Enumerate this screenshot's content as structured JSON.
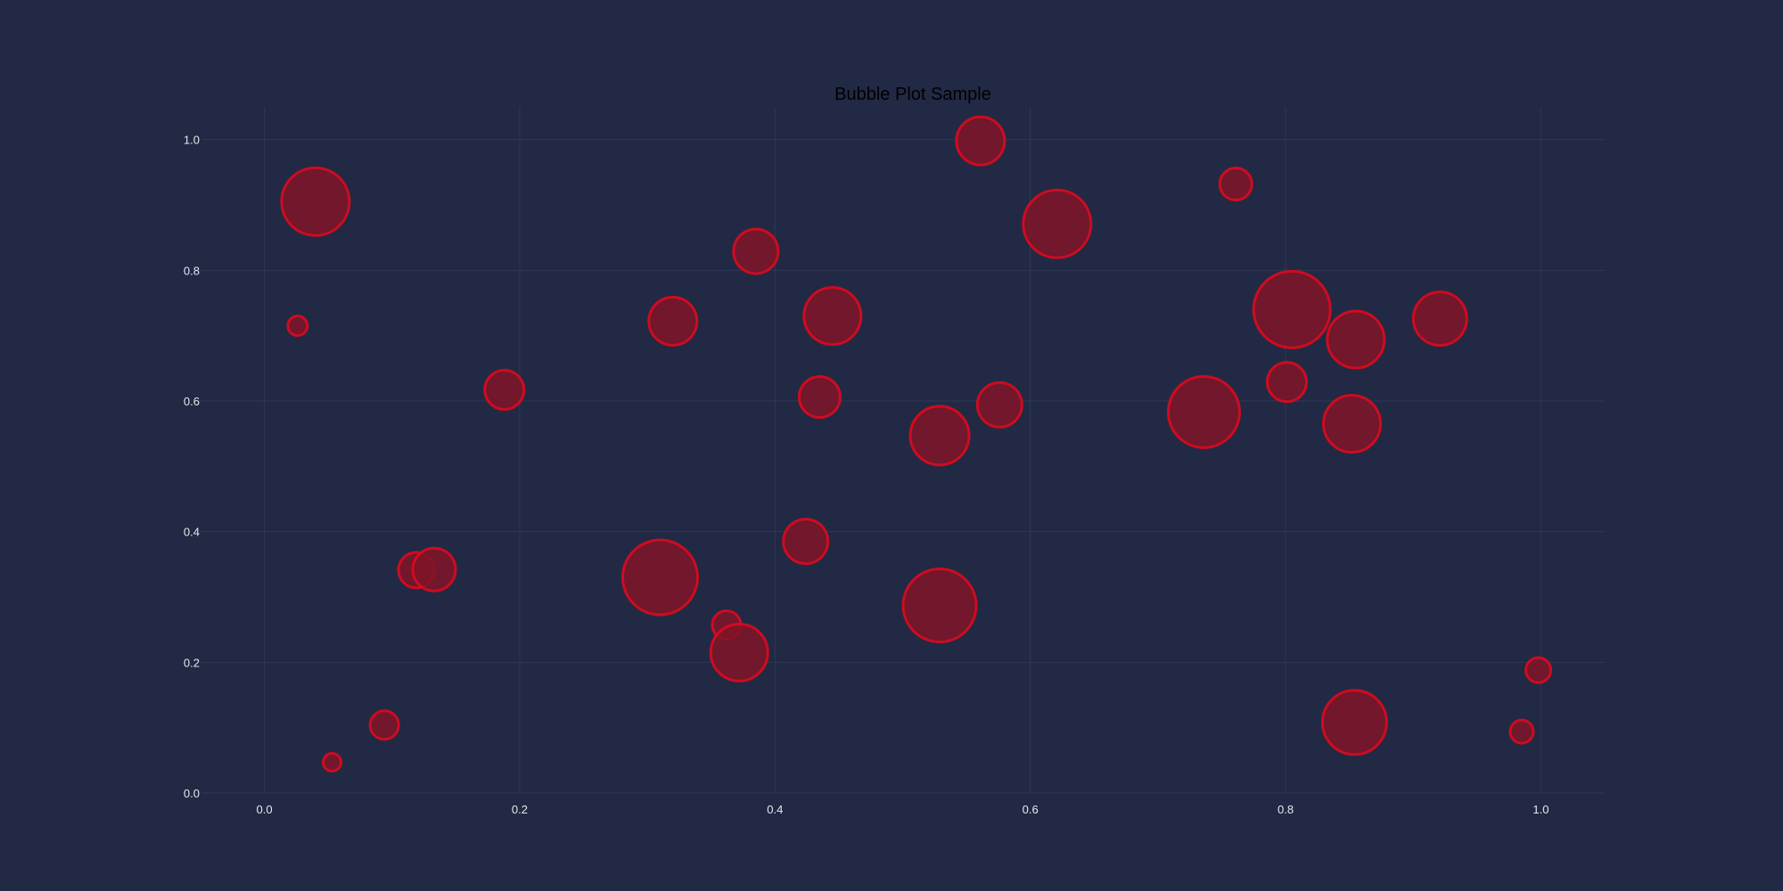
{
  "chart_data": {
    "type": "scatter",
    "title": "Bubble Plot Sample",
    "xlabel": "",
    "ylabel": "",
    "xlim": [
      -0.05,
      1.05
    ],
    "ylim": [
      0,
      1.05
    ],
    "x_ticks": [
      "0.0",
      "0.2",
      "0.4",
      "0.6",
      "0.8",
      "1.0"
    ],
    "y_ticks": [
      "0.0",
      "0.2",
      "0.4",
      "0.6",
      "0.8",
      "1.0"
    ],
    "grid": true,
    "colors": {
      "background": "#222944",
      "grid": "#2f3756",
      "bubble_fill": "#801428",
      "bubble_edge": "#dc0a1e"
    },
    "points": [
      {
        "x": 0.04,
        "y": 0.905,
        "size": 38
      },
      {
        "x": 0.026,
        "y": 0.715,
        "size": 11
      },
      {
        "x": 0.053,
        "y": 0.047,
        "size": 10
      },
      {
        "x": 0.094,
        "y": 0.104,
        "size": 16
      },
      {
        "x": 0.119,
        "y": 0.341,
        "size": 20
      },
      {
        "x": 0.133,
        "y": 0.342,
        "size": 24
      },
      {
        "x": 0.188,
        "y": 0.617,
        "size": 22
      },
      {
        "x": 0.31,
        "y": 0.33,
        "size": 42
      },
      {
        "x": 0.32,
        "y": 0.722,
        "size": 27
      },
      {
        "x": 0.362,
        "y": 0.257,
        "size": 16
      },
      {
        "x": 0.372,
        "y": 0.215,
        "size": 32
      },
      {
        "x": 0.385,
        "y": 0.829,
        "size": 25
      },
      {
        "x": 0.424,
        "y": 0.385,
        "size": 25
      },
      {
        "x": 0.435,
        "y": 0.606,
        "size": 23
      },
      {
        "x": 0.445,
        "y": 0.73,
        "size": 32
      },
      {
        "x": 0.529,
        "y": 0.547,
        "size": 33
      },
      {
        "x": 0.529,
        "y": 0.287,
        "size": 41
      },
      {
        "x": 0.561,
        "y": 0.998,
        "size": 27
      },
      {
        "x": 0.576,
        "y": 0.594,
        "size": 25
      },
      {
        "x": 0.621,
        "y": 0.871,
        "size": 38
      },
      {
        "x": 0.736,
        "y": 0.583,
        "size": 40
      },
      {
        "x": 0.761,
        "y": 0.932,
        "size": 18
      },
      {
        "x": 0.801,
        "y": 0.629,
        "size": 22
      },
      {
        "x": 0.805,
        "y": 0.74,
        "size": 43
      },
      {
        "x": 0.852,
        "y": 0.565,
        "size": 32
      },
      {
        "x": 0.854,
        "y": 0.108,
        "size": 36
      },
      {
        "x": 0.855,
        "y": 0.694,
        "size": 32
      },
      {
        "x": 0.921,
        "y": 0.726,
        "size": 30
      },
      {
        "x": 0.985,
        "y": 0.094,
        "size": 13
      },
      {
        "x": 0.998,
        "y": 0.188,
        "size": 14
      }
    ]
  }
}
